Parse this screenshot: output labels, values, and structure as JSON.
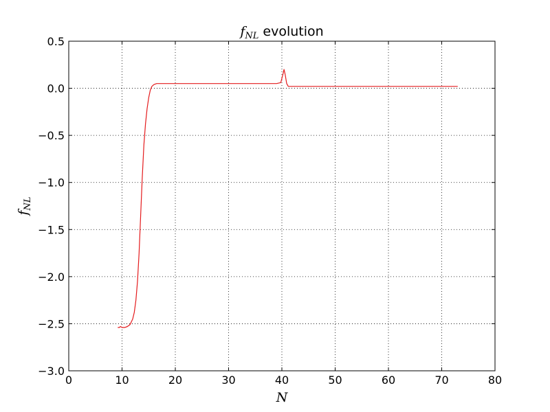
{
  "chart_data": {
    "type": "line",
    "title": {
      "math_main": "f",
      "math_sub": "NL",
      "text": "evolution"
    },
    "xlabel": "N",
    "ylabel": {
      "main": "f",
      "sub": "NL"
    },
    "xlim": [
      0,
      80
    ],
    "ylim": [
      -3.0,
      0.5
    ],
    "xticks": [
      0,
      10,
      20,
      30,
      40,
      50,
      60,
      70,
      80
    ],
    "xtick_labels": [
      "0",
      "10",
      "20",
      "30",
      "40",
      "50",
      "60",
      "70",
      "80"
    ],
    "yticks": [
      0.5,
      0.0,
      -0.5,
      -1.0,
      -1.5,
      -2.0,
      -2.5,
      -3.0
    ],
    "ytick_labels": [
      "0.5",
      "0.0",
      "−0.5",
      "−1.0",
      "−1.5",
      "−2.0",
      "−2.5",
      "−3.0"
    ],
    "grid": true,
    "series": [
      {
        "color": "#e41a1c",
        "x": [
          9.2,
          9.5,
          9.7,
          10.0,
          10.5,
          11.0,
          11.5,
          12.0,
          12.3,
          12.6,
          12.9,
          13.2,
          13.5,
          13.8,
          14.1,
          14.4,
          14.7,
          15.0,
          15.3,
          15.6,
          16.0,
          16.5,
          17.0,
          17.5,
          18.0,
          20.0,
          25.0,
          30.0,
          35.0,
          39.0,
          39.8,
          40.2,
          40.4,
          40.6,
          40.9,
          41.2,
          41.5,
          42.0,
          43.0,
          50.0,
          60.0,
          70.0,
          73.0
        ],
        "y": [
          -2.54,
          -2.54,
          -2.53,
          -2.54,
          -2.54,
          -2.53,
          -2.51,
          -2.45,
          -2.38,
          -2.25,
          -2.05,
          -1.75,
          -1.35,
          -0.95,
          -0.6,
          -0.38,
          -0.22,
          -0.1,
          -0.02,
          0.02,
          0.04,
          0.05,
          0.05,
          0.05,
          0.05,
          0.05,
          0.05,
          0.05,
          0.05,
          0.05,
          0.06,
          0.15,
          0.2,
          0.15,
          0.05,
          0.02,
          0.02,
          0.02,
          0.02,
          0.02,
          0.02,
          0.02,
          0.02
        ]
      }
    ]
  }
}
